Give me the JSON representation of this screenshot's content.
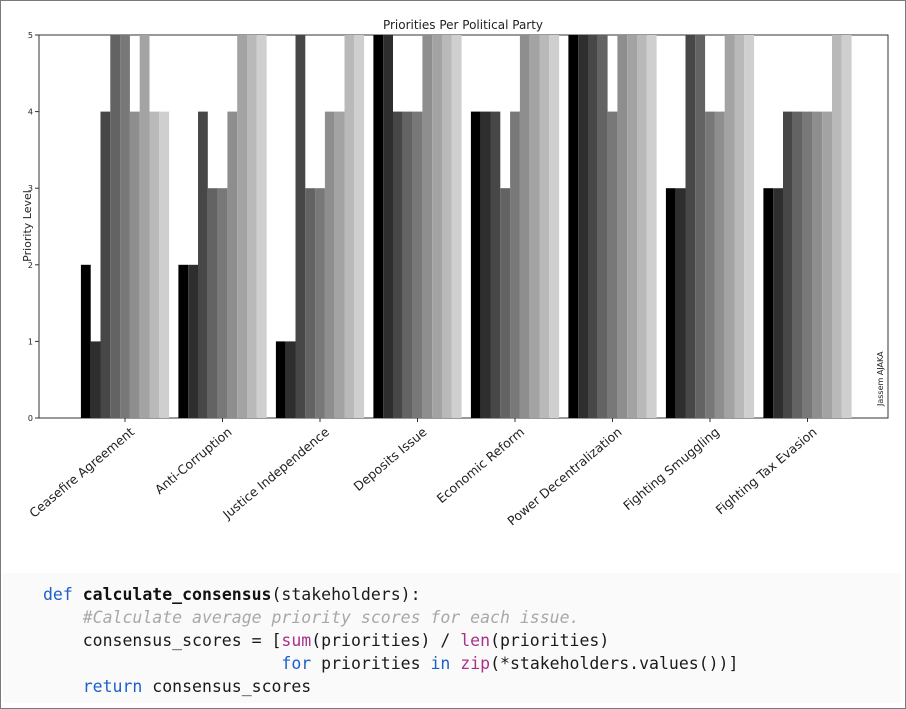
{
  "chart_data": {
    "type": "bar",
    "title": "Priorities Per Political Party",
    "ylabel": "Priority Level",
    "xlabel": "",
    "ylim": [
      0,
      5
    ],
    "yticks": [
      0,
      1,
      2,
      3,
      4,
      5
    ],
    "grid": false,
    "annotation": "Jassem AJAKA",
    "categories": [
      "Ceasefire Agreement",
      "Anti-Corruption",
      "Justice Independence",
      "Deposits Issue",
      "Economic Reform",
      "Power Decentralization",
      "Fighting Smuggling",
      "Fighting Tax Evasion"
    ],
    "series": [
      {
        "color": "#000000",
        "values": [
          2,
          2,
          1,
          5,
          4,
          5,
          3,
          3
        ]
      },
      {
        "color": "#2e2e2e",
        "values": [
          1,
          2,
          1,
          5,
          4,
          5,
          3,
          3
        ]
      },
      {
        "color": "#474747",
        "values": [
          4,
          4,
          5,
          4,
          4,
          5,
          5,
          4
        ]
      },
      {
        "color": "#636363",
        "values": [
          5,
          3,
          3,
          4,
          3,
          5,
          5,
          4
        ]
      },
      {
        "color": "#787878",
        "values": [
          5,
          3,
          3,
          4,
          4,
          4,
          4,
          4
        ]
      },
      {
        "color": "#8e8e8e",
        "values": [
          4,
          4,
          4,
          5,
          5,
          5,
          4,
          4
        ]
      },
      {
        "color": "#a3a3a3",
        "values": [
          5,
          5,
          4,
          5,
          5,
          5,
          5,
          4
        ]
      },
      {
        "color": "#b9b9b9",
        "values": [
          4,
          5,
          5,
          5,
          5,
          5,
          5,
          5
        ]
      },
      {
        "color": "#cfcfcf",
        "values": [
          4,
          5,
          5,
          5,
          5,
          5,
          5,
          5
        ]
      }
    ]
  },
  "code": {
    "lines": [
      [
        {
          "t": "def ",
          "c": "kw"
        },
        {
          "t": "calculate_consensus",
          "c": "fn"
        },
        {
          "t": "(stakeholders):",
          "c": ""
        }
      ],
      [
        {
          "t": "    ",
          "c": ""
        },
        {
          "t": "#Calculate average priority scores for each issue.",
          "c": "cm"
        }
      ],
      [
        {
          "t": "    consensus_scores = [",
          "c": ""
        },
        {
          "t": "sum",
          "c": "bi"
        },
        {
          "t": "(priorities) / ",
          "c": ""
        },
        {
          "t": "len",
          "c": "bi"
        },
        {
          "t": "(priorities)",
          "c": ""
        }
      ],
      [
        {
          "t": "                        ",
          "c": ""
        },
        {
          "t": "for",
          "c": "kw"
        },
        {
          "t": " priorities ",
          "c": ""
        },
        {
          "t": "in",
          "c": "kw"
        },
        {
          "t": " ",
          "c": ""
        },
        {
          "t": "zip",
          "c": "bi"
        },
        {
          "t": "(*stakeholders.values())]",
          "c": ""
        }
      ],
      [
        {
          "t": "    ",
          "c": ""
        },
        {
          "t": "return",
          "c": "kw"
        },
        {
          "t": " consensus_scores",
          "c": ""
        }
      ]
    ]
  }
}
